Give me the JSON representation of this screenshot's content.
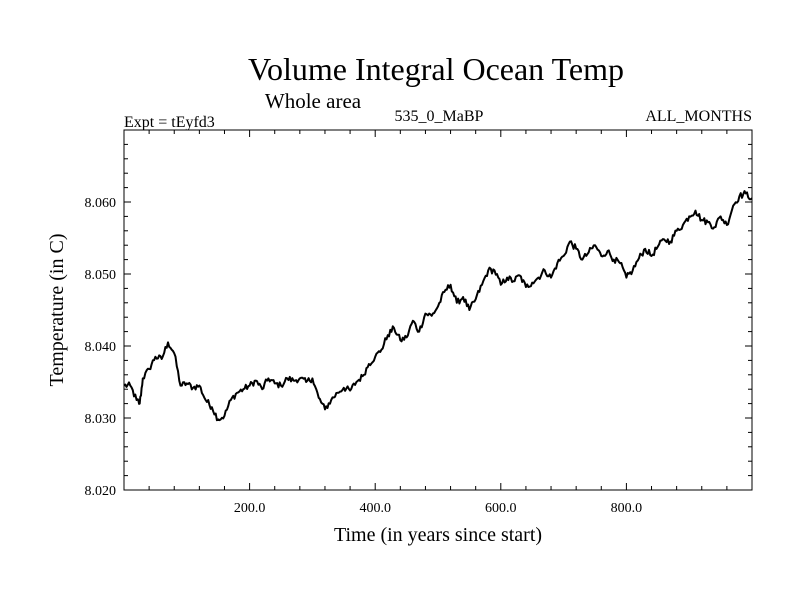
{
  "chart_data": {
    "type": "line",
    "title": "Volume Integral Ocean Temp",
    "subtitle": "Whole area",
    "annotations": {
      "left": "Expt = tEyfd3",
      "center": "535_0_MaBP",
      "right": "ALL_MONTHS"
    },
    "xlabel": "Time (in years since start)",
    "ylabel": "Temperature (in C)",
    "xlim": [
      0,
      1000
    ],
    "ylim": [
      8.02,
      8.07
    ],
    "xticks": [
      {
        "value": 200,
        "label": "200.0"
      },
      {
        "value": 400,
        "label": "400.0"
      },
      {
        "value": 600,
        "label": "600.0"
      },
      {
        "value": 800,
        "label": "800.0"
      }
    ],
    "yticks": [
      {
        "value": 8.02,
        "label": "8.020"
      },
      {
        "value": 8.03,
        "label": "8.030"
      },
      {
        "value": 8.04,
        "label": "8.040"
      },
      {
        "value": 8.05,
        "label": "8.050"
      },
      {
        "value": 8.06,
        "label": "8.060"
      }
    ],
    "series": [
      {
        "name": "Volume Integral Ocean Temp",
        "color": "#000000",
        "x": [
          0,
          10,
          20,
          25,
          30,
          40,
          50,
          60,
          70,
          80,
          90,
          100,
          110,
          120,
          130,
          140,
          150,
          160,
          170,
          180,
          190,
          200,
          210,
          220,
          230,
          240,
          250,
          260,
          270,
          280,
          290,
          300,
          310,
          320,
          330,
          340,
          350,
          360,
          370,
          380,
          390,
          400,
          410,
          420,
          430,
          440,
          450,
          460,
          470,
          480,
          490,
          500,
          510,
          520,
          530,
          540,
          550,
          560,
          570,
          580,
          590,
          600,
          610,
          620,
          630,
          640,
          650,
          660,
          670,
          680,
          690,
          700,
          710,
          720,
          730,
          740,
          750,
          760,
          770,
          780,
          790,
          800,
          810,
          820,
          830,
          840,
          850,
          860,
          870,
          880,
          890,
          900,
          910,
          920,
          930,
          940,
          950,
          960,
          970,
          980,
          990,
          1000
        ],
        "y": [
          8.0345,
          8.0345,
          8.0325,
          8.032,
          8.0355,
          8.0368,
          8.0385,
          8.0382,
          8.0405,
          8.039,
          8.0345,
          8.0348,
          8.0342,
          8.0345,
          8.0325,
          8.0315,
          8.0298,
          8.0303,
          8.0325,
          8.0335,
          8.034,
          8.0345,
          8.0352,
          8.034,
          8.0355,
          8.0348,
          8.0345,
          8.0355,
          8.0352,
          8.0355,
          8.035,
          8.0355,
          8.0328,
          8.0312,
          8.0325,
          8.0335,
          8.0342,
          8.0338,
          8.035,
          8.0358,
          8.0375,
          8.0385,
          8.0395,
          8.0415,
          8.0425,
          8.0408,
          8.0412,
          8.0435,
          8.042,
          8.0445,
          8.0442,
          8.0455,
          8.0475,
          8.0485,
          8.046,
          8.0468,
          8.045,
          8.0465,
          8.0485,
          8.0505,
          8.0505,
          8.0485,
          8.0495,
          8.049,
          8.0498,
          8.0482,
          8.0488,
          8.0495,
          8.0505,
          8.0495,
          8.0515,
          8.0525,
          8.0545,
          8.0535,
          8.052,
          8.053,
          8.054,
          8.0525,
          8.0532,
          8.052,
          8.0515,
          8.0495,
          8.0505,
          8.0522,
          8.0535,
          8.0525,
          8.0538,
          8.0548,
          8.0545,
          8.056,
          8.0568,
          8.058,
          8.0588,
          8.0575,
          8.0572,
          8.0565,
          8.058,
          8.0568,
          8.0595,
          8.0608,
          8.0612,
          8.0605
        ]
      }
    ]
  }
}
